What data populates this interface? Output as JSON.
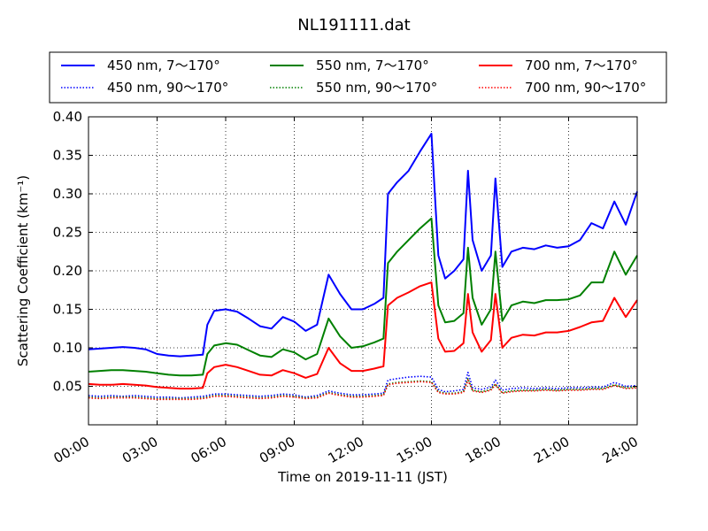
{
  "chart_data": {
    "type": "line",
    "title": "NL191111.dat",
    "xlabel": "Time on 2019-11-11 (JST)",
    "ylabel": "Scattering Coefficient (km⁻¹)",
    "xlim": [
      0,
      24
    ],
    "ylim": [
      0.0,
      0.4
    ],
    "x_ticks": [
      "00:00",
      "03:00",
      "06:00",
      "09:00",
      "12:00",
      "15:00",
      "18:00",
      "21:00",
      "24:00"
    ],
    "x_tick_values": [
      0,
      3,
      6,
      9,
      12,
      15,
      18,
      21,
      24
    ],
    "y_ticks": [
      "0.05",
      "0.10",
      "0.15",
      "0.20",
      "0.25",
      "0.30",
      "0.35",
      "0.40"
    ],
    "y_tick_values": [
      0.05,
      0.1,
      0.15,
      0.2,
      0.25,
      0.3,
      0.35,
      0.4
    ],
    "grid": true,
    "legend_position": "top",
    "legend_columns": 3,
    "x_hours": [
      0,
      0.5,
      1,
      1.5,
      2,
      2.5,
      3,
      3.5,
      4,
      4.5,
      5,
      5.2,
      5.5,
      6,
      6.5,
      7,
      7.5,
      8,
      8.5,
      9,
      9.5,
      10,
      10.5,
      11,
      11.5,
      12,
      12.5,
      12.9,
      13.1,
      13.5,
      14,
      14.5,
      15,
      15.3,
      15.6,
      16,
      16.4,
      16.6,
      16.8,
      17.2,
      17.6,
      17.8,
      18.1,
      18.5,
      19,
      19.5,
      20,
      20.5,
      21,
      21.5,
      22,
      22.5,
      23,
      23.5,
      24
    ],
    "series": [
      {
        "name": "450 nm, 7～170°",
        "color": "#0000ff",
        "style": "solid",
        "values": [
          0.098,
          0.099,
          0.1,
          0.101,
          0.1,
          0.098,
          0.092,
          0.09,
          0.089,
          0.09,
          0.091,
          0.13,
          0.148,
          0.15,
          0.147,
          0.138,
          0.128,
          0.125,
          0.14,
          0.134,
          0.122,
          0.13,
          0.195,
          0.17,
          0.15,
          0.15,
          0.157,
          0.165,
          0.3,
          0.315,
          0.33,
          0.355,
          0.378,
          0.22,
          0.19,
          0.2,
          0.215,
          0.33,
          0.24,
          0.2,
          0.22,
          0.32,
          0.205,
          0.225,
          0.23,
          0.228,
          0.233,
          0.23,
          0.232,
          0.24,
          0.262,
          0.255,
          0.29,
          0.26,
          0.303
        ]
      },
      {
        "name": "550 nm, 7～170°",
        "color": "#008000",
        "style": "solid",
        "values": [
          0.069,
          0.07,
          0.071,
          0.071,
          0.07,
          0.069,
          0.067,
          0.065,
          0.064,
          0.064,
          0.065,
          0.092,
          0.103,
          0.106,
          0.104,
          0.097,
          0.09,
          0.088,
          0.098,
          0.094,
          0.085,
          0.092,
          0.138,
          0.115,
          0.1,
          0.102,
          0.107,
          0.112,
          0.21,
          0.225,
          0.24,
          0.255,
          0.268,
          0.155,
          0.133,
          0.135,
          0.145,
          0.23,
          0.165,
          0.13,
          0.15,
          0.225,
          0.135,
          0.155,
          0.16,
          0.158,
          0.162,
          0.162,
          0.163,
          0.168,
          0.185,
          0.185,
          0.225,
          0.195,
          0.22
        ]
      },
      {
        "name": "700 nm, 7～170°",
        "color": "#ff0000",
        "style": "solid",
        "values": [
          0.053,
          0.052,
          0.052,
          0.053,
          0.052,
          0.051,
          0.049,
          0.048,
          0.047,
          0.047,
          0.048,
          0.067,
          0.075,
          0.078,
          0.075,
          0.07,
          0.065,
          0.064,
          0.071,
          0.067,
          0.061,
          0.066,
          0.1,
          0.08,
          0.07,
          0.07,
          0.073,
          0.076,
          0.155,
          0.165,
          0.172,
          0.18,
          0.185,
          0.112,
          0.095,
          0.096,
          0.106,
          0.17,
          0.12,
          0.095,
          0.11,
          0.17,
          0.1,
          0.113,
          0.117,
          0.116,
          0.12,
          0.12,
          0.122,
          0.127,
          0.133,
          0.135,
          0.165,
          0.14,
          0.162
        ]
      },
      {
        "name": "450 nm, 90～170°",
        "color": "#0000ff",
        "style": "dotted",
        "values": [
          0.038,
          0.037,
          0.038,
          0.037,
          0.038,
          0.037,
          0.036,
          0.036,
          0.035,
          0.036,
          0.037,
          0.038,
          0.04,
          0.04,
          0.039,
          0.038,
          0.037,
          0.038,
          0.04,
          0.039,
          0.036,
          0.038,
          0.044,
          0.041,
          0.039,
          0.039,
          0.04,
          0.041,
          0.058,
          0.06,
          0.062,
          0.063,
          0.062,
          0.046,
          0.043,
          0.044,
          0.046,
          0.068,
          0.048,
          0.046,
          0.049,
          0.058,
          0.045,
          0.047,
          0.048,
          0.047,
          0.048,
          0.047,
          0.048,
          0.048,
          0.049,
          0.049,
          0.055,
          0.05,
          0.051
        ]
      },
      {
        "name": "550 nm, 90～170°",
        "color": "#008000",
        "style": "dotted",
        "values": [
          0.036,
          0.035,
          0.036,
          0.036,
          0.036,
          0.035,
          0.034,
          0.034,
          0.034,
          0.034,
          0.035,
          0.036,
          0.038,
          0.038,
          0.037,
          0.036,
          0.035,
          0.036,
          0.038,
          0.037,
          0.035,
          0.036,
          0.042,
          0.039,
          0.037,
          0.037,
          0.038,
          0.039,
          0.053,
          0.055,
          0.056,
          0.057,
          0.056,
          0.043,
          0.041,
          0.041,
          0.043,
          0.06,
          0.045,
          0.043,
          0.046,
          0.053,
          0.042,
          0.044,
          0.045,
          0.045,
          0.046,
          0.045,
          0.046,
          0.046,
          0.047,
          0.047,
          0.052,
          0.048,
          0.049
        ]
      },
      {
        "name": "700 nm, 90～170°",
        "color": "#ff0000",
        "style": "dotted",
        "values": [
          0.035,
          0.034,
          0.035,
          0.035,
          0.035,
          0.034,
          0.033,
          0.033,
          0.033,
          0.033,
          0.034,
          0.035,
          0.037,
          0.037,
          0.036,
          0.035,
          0.034,
          0.035,
          0.037,
          0.036,
          0.034,
          0.035,
          0.041,
          0.038,
          0.036,
          0.036,
          0.037,
          0.038,
          0.052,
          0.054,
          0.055,
          0.056,
          0.055,
          0.042,
          0.04,
          0.04,
          0.042,
          0.058,
          0.044,
          0.042,
          0.045,
          0.052,
          0.041,
          0.043,
          0.044,
          0.044,
          0.045,
          0.044,
          0.045,
          0.045,
          0.046,
          0.046,
          0.051,
          0.047,
          0.048
        ]
      }
    ]
  }
}
